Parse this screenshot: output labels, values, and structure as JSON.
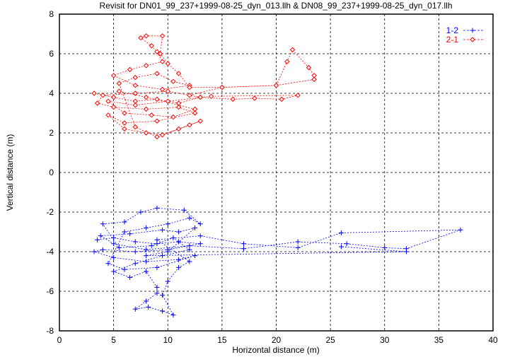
{
  "chart_data": {
    "type": "scatter",
    "title": "Revisit for DN01_99_237+1999-08-25_dyn_013.llh & DN08_99_237+1999-08-25_dyn_017.llh",
    "xlabel": "Horizontal distance (m)",
    "ylabel": "Vertical distance (m)",
    "xlim": [
      0,
      40
    ],
    "ylim": [
      -8,
      8
    ],
    "xticks": [
      0,
      5,
      10,
      15,
      20,
      25,
      30,
      35,
      40
    ],
    "yticks": [
      -8,
      -6,
      -4,
      -2,
      0,
      2,
      4,
      6,
      8
    ],
    "grid": true,
    "legend_position": "top-right",
    "series": [
      {
        "name": "1-2",
        "color": "#0000ff",
        "marker": "plus",
        "line": "dashed",
        "points": [
          [
            3.5,
            -3.4
          ],
          [
            5,
            -3.3
          ],
          [
            7,
            -3.5
          ],
          [
            9,
            -3.6
          ],
          [
            11,
            -3.5
          ],
          [
            13,
            -3.6
          ],
          [
            10,
            -3.9
          ],
          [
            7,
            -4.0
          ],
          [
            4,
            -3.9
          ],
          [
            3.2,
            -4.0
          ],
          [
            5,
            -4.3
          ],
          [
            8,
            -4.5
          ],
          [
            11,
            -4.4
          ],
          [
            12.5,
            -4.2
          ],
          [
            9,
            -4.8
          ],
          [
            6,
            -4.9
          ],
          [
            4.5,
            -4.6
          ],
          [
            6,
            -3.0
          ],
          [
            8,
            -2.8
          ],
          [
            10,
            -2.6
          ],
          [
            12,
            -2.3
          ],
          [
            13,
            -2.6
          ],
          [
            11.5,
            -1.9
          ],
          [
            9,
            -1.8
          ],
          [
            7.5,
            -2.0
          ],
          [
            6,
            -2.5
          ],
          [
            4,
            -2.6
          ],
          [
            5.5,
            -3.8
          ],
          [
            8.5,
            -3.7
          ],
          [
            10.5,
            -3.3
          ],
          [
            12,
            -3.9
          ],
          [
            9.5,
            -4.2
          ],
          [
            7,
            -4.6
          ],
          [
            5,
            -5.0
          ],
          [
            6.5,
            -5.3
          ],
          [
            8,
            -5.0
          ],
          [
            9,
            -5.8
          ],
          [
            9,
            -6.1
          ],
          [
            8,
            -6.5
          ],
          [
            7,
            -6.9
          ],
          [
            8.2,
            -6.8
          ],
          [
            9.5,
            -7.0
          ],
          [
            10.5,
            -7.2
          ],
          [
            9.5,
            -6.2
          ],
          [
            10,
            -5.5
          ],
          [
            11,
            -4.8
          ],
          [
            12,
            -4.5
          ],
          [
            9,
            -3.4
          ],
          [
            13,
            -3.2
          ],
          [
            17,
            -3.6
          ],
          [
            22,
            -3.8
          ],
          [
            26,
            -3.05
          ],
          [
            37,
            -2.9
          ],
          [
            32,
            -3.85
          ],
          [
            30,
            -3.8
          ],
          [
            26.5,
            -3.6
          ],
          [
            22,
            -3.5
          ],
          [
            17,
            -3.85
          ],
          [
            12,
            -3.7
          ],
          [
            8,
            -3.9
          ],
          [
            5,
            -3.6
          ],
          [
            3.8,
            -3.2
          ],
          [
            6.5,
            -3.1
          ],
          [
            9.5,
            -2.9
          ],
          [
            11,
            -3.0
          ],
          [
            12.5,
            -2.8
          ],
          [
            10,
            -4.0
          ],
          [
            8,
            -4.2
          ],
          [
            32,
            -4.0
          ],
          [
            26,
            -3.75
          ]
        ]
      },
      {
        "name": "2-1",
        "color": "#ff0000",
        "marker": "diamond",
        "line": "dashed",
        "points": [
          [
            3.2,
            4.0
          ],
          [
            5,
            3.8
          ],
          [
            7,
            3.6
          ],
          [
            9,
            3.7
          ],
          [
            11,
            3.5
          ],
          [
            13,
            3.8
          ],
          [
            10,
            4.1
          ],
          [
            7,
            4.0
          ],
          [
            4,
            3.9
          ],
          [
            3.5,
            3.5
          ],
          [
            5,
            3.3
          ],
          [
            8,
            3.2
          ],
          [
            11,
            3.3
          ],
          [
            12.5,
            3.0
          ],
          [
            9,
            2.6
          ],
          [
            6,
            2.5
          ],
          [
            4.5,
            2.9
          ],
          [
            6,
            2.2
          ],
          [
            8,
            2.0
          ],
          [
            9.5,
            1.9
          ],
          [
            11,
            2.2
          ],
          [
            13,
            2.6
          ],
          [
            12,
            2.4
          ],
          [
            9,
            1.8
          ],
          [
            7,
            2.3
          ],
          [
            5.5,
            4.5
          ],
          [
            7,
            4.8
          ],
          [
            9,
            5.0
          ],
          [
            10.5,
            4.6
          ],
          [
            12,
            4.4
          ],
          [
            9.5,
            4.2
          ],
          [
            7,
            4.4
          ],
          [
            5,
            4.9
          ],
          [
            6.5,
            5.2
          ],
          [
            8,
            5.4
          ],
          [
            9.5,
            5.6
          ],
          [
            9,
            6.1
          ],
          [
            8.5,
            6.4
          ],
          [
            7.5,
            6.8
          ],
          [
            8,
            6.9
          ],
          [
            9.5,
            6.9
          ],
          [
            9.3,
            6.0
          ],
          [
            10,
            5.5
          ],
          [
            11,
            5.0
          ],
          [
            12,
            4.3
          ],
          [
            15,
            4.3
          ],
          [
            20,
            4.4
          ],
          [
            23.5,
            4.7
          ],
          [
            23.5,
            4.9
          ],
          [
            23,
            5.3
          ],
          [
            21.5,
            6.2
          ],
          [
            21,
            5.6
          ],
          [
            20,
            4.4
          ],
          [
            15,
            4.3
          ],
          [
            12,
            3.9
          ],
          [
            13,
            3.8
          ],
          [
            16,
            3.7
          ],
          [
            18,
            3.75
          ],
          [
            20.5,
            3.7
          ],
          [
            22,
            3.9
          ],
          [
            14,
            3.85
          ],
          [
            10,
            3.6
          ],
          [
            7,
            3.4
          ],
          [
            4.5,
            3.6
          ],
          [
            6,
            3.0
          ],
          [
            8.5,
            2.9
          ],
          [
            10.5,
            2.8
          ],
          [
            12.5,
            3.2
          ],
          [
            8,
            3.8
          ],
          [
            5.5,
            4.1
          ]
        ]
      }
    ]
  }
}
